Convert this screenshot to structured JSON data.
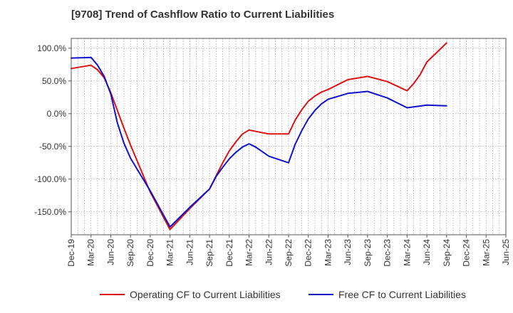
{
  "chart_data": {
    "type": "line",
    "title": "[9708]  Trend of Cashflow Ratio to Current Liabilities",
    "xlabel": "",
    "ylabel": "",
    "ylim": [
      -185,
      115
    ],
    "yticks": [
      100,
      50,
      0,
      -50,
      -100,
      -150
    ],
    "ytick_labels": [
      "100.0%",
      "50.0%",
      "0.0%",
      "-50.0%",
      "-100.0%",
      "-150.0%"
    ],
    "x_range": [
      0,
      66
    ],
    "xticks": [
      0,
      3,
      6,
      9,
      12,
      15,
      18,
      21,
      24,
      27,
      30,
      33,
      36,
      39,
      42,
      45,
      48,
      51,
      54,
      57,
      60,
      63,
      66
    ],
    "xtick_labels": [
      "Dec-19",
      "Mar-20",
      "Jun-20",
      "Sep-20",
      "Dec-20",
      "Mar-21",
      "Jun-21",
      "Sep-21",
      "Dec-21",
      "Mar-22",
      "Jun-22",
      "Sep-22",
      "Dec-22",
      "Mar-23",
      "Jun-23",
      "Sep-23",
      "Dec-23",
      "Mar-24",
      "Jun-24",
      "Sep-24",
      "Dec-24",
      "Mar-25",
      "Jun-25"
    ],
    "grid": true,
    "legend_position": "bottom",
    "series": [
      {
        "name": "Operating CF to Current Liabilities",
        "color": "#dd1111",
        "points": [
          [
            0,
            69
          ],
          [
            3,
            74
          ],
          [
            4,
            67
          ],
          [
            5,
            55
          ],
          [
            6,
            32
          ],
          [
            7,
            5
          ],
          [
            8,
            -22
          ],
          [
            9,
            -48
          ],
          [
            12,
            -120
          ],
          [
            15,
            -177
          ],
          [
            18,
            -145
          ],
          [
            21,
            -115
          ],
          [
            22,
            -95
          ],
          [
            23,
            -75
          ],
          [
            24,
            -57
          ],
          [
            25,
            -43
          ],
          [
            26,
            -31
          ],
          [
            27,
            -25
          ],
          [
            30,
            -31
          ],
          [
            33,
            -31
          ],
          [
            34,
            -10
          ],
          [
            35,
            6
          ],
          [
            36,
            19
          ],
          [
            37,
            27
          ],
          [
            38,
            33
          ],
          [
            39,
            37
          ],
          [
            42,
            52
          ],
          [
            45,
            57
          ],
          [
            48,
            49
          ],
          [
            51,
            35
          ],
          [
            52,
            46
          ],
          [
            53,
            60
          ],
          [
            54,
            79
          ],
          [
            57,
            108
          ]
        ]
      },
      {
        "name": "Free CF to Current Liabilities",
        "color": "#1111cc",
        "points": [
          [
            0,
            85
          ],
          [
            3,
            86
          ],
          [
            4,
            74
          ],
          [
            5,
            57
          ],
          [
            6,
            30
          ],
          [
            7,
            -14
          ],
          [
            8,
            -45
          ],
          [
            9,
            -68
          ],
          [
            12,
            -118
          ],
          [
            15,
            -173
          ],
          [
            18,
            -143
          ],
          [
            21,
            -115
          ],
          [
            22,
            -96
          ],
          [
            23,
            -82
          ],
          [
            24,
            -69
          ],
          [
            25,
            -59
          ],
          [
            26,
            -51
          ],
          [
            27,
            -46
          ],
          [
            28,
            -51
          ],
          [
            30,
            -65
          ],
          [
            33,
            -75
          ],
          [
            34,
            -47
          ],
          [
            35,
            -26
          ],
          [
            36,
            -8
          ],
          [
            37,
            5
          ],
          [
            38,
            15
          ],
          [
            39,
            22
          ],
          [
            42,
            31
          ],
          [
            45,
            34
          ],
          [
            48,
            24
          ],
          [
            51,
            9
          ],
          [
            54,
            13
          ],
          [
            57,
            12
          ]
        ]
      }
    ]
  }
}
